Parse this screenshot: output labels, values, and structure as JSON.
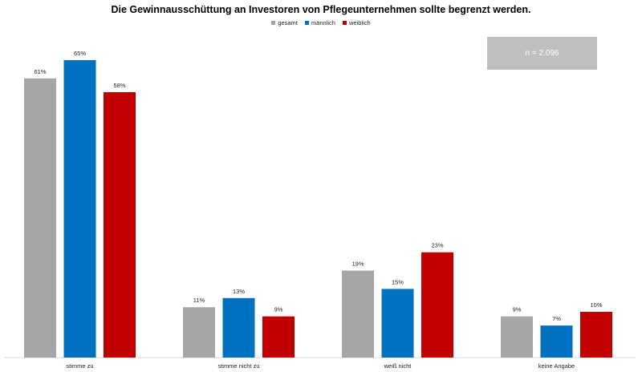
{
  "chart_data": {
    "type": "bar",
    "title": "Die Gewinnausschüttung an Investoren von Pflegeunternehmen sollte begrenzt werden.",
    "categories": [
      "stimme zu",
      "stimme nicht zu",
      "weiß nicht",
      "keine Angabe"
    ],
    "series": [
      {
        "name": "gesamt",
        "color": "#a6a6a6",
        "values": [
          61,
          11,
          19,
          9
        ],
        "labels": [
          "61%",
          "11%",
          "19%",
          "9%"
        ]
      },
      {
        "name": "männlich",
        "color": "#0070c0",
        "values": [
          65,
          13,
          15,
          7
        ],
        "labels": [
          "65%",
          "13%",
          "15%",
          "7%"
        ]
      },
      {
        "name": "weiblich",
        "color": "#c00000",
        "values": [
          58,
          9,
          23,
          10
        ],
        "labels": [
          "58%",
          "9%",
          "23%",
          "10%"
        ]
      }
    ],
    "ylim": [
      0,
      65
    ],
    "grid": false,
    "legend_position": "top-center",
    "annotation": "n = 2.096"
  }
}
